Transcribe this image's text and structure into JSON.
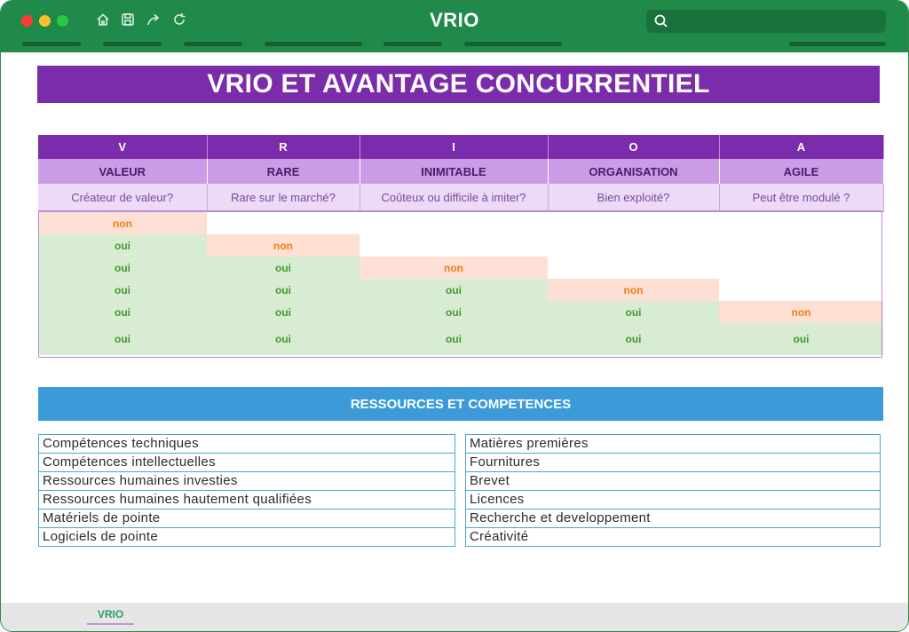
{
  "window": {
    "title": "VRIO",
    "controls": [
      "close",
      "minimize",
      "maximize"
    ],
    "toolbar_icons": [
      "home-icon",
      "save-icon",
      "share-icon",
      "refresh-icon"
    ],
    "search_icon": "search-icon",
    "colors": {
      "titlebar": "#1f8a49",
      "banner": "#7b2cab",
      "section": "#3d9ad9"
    }
  },
  "banner": {
    "title": "VRIO ET AVANTAGE CONCURRENTIEL"
  },
  "vrio": {
    "letters": [
      "V",
      "R",
      "I",
      "O",
      "A"
    ],
    "names": [
      "VALEUR",
      "RARE",
      "INIMITABLE",
      "ORGANISATION",
      "AGILE"
    ],
    "questions": [
      "Créateur de valeur?",
      "Rare sur le marché?",
      "Coûteux ou difficile à imiter?",
      "Bien exploité?",
      "Peut être modulé ?"
    ],
    "rows": [
      [
        "non",
        "",
        "",
        "",
        ""
      ],
      [
        "oui",
        "non",
        "",
        "",
        ""
      ],
      [
        "oui",
        "oui",
        "non",
        "",
        ""
      ],
      [
        "oui",
        "oui",
        "oui",
        "non",
        ""
      ],
      [
        "oui",
        "oui",
        "oui",
        "oui",
        "non"
      ],
      [
        "oui",
        "oui",
        "oui",
        "oui",
        "oui"
      ]
    ]
  },
  "resources": {
    "header": "RESSOURCES ET COMPETENCES",
    "left": [
      "Compétences techniques",
      "Compétences intellectuelles",
      "Ressources humaines investies",
      "Ressources humaines hautement qualifiées",
      "Matériels de pointe",
      "Logiciels de pointe"
    ],
    "right": [
      "Matières premières",
      "Fournitures",
      "Brevet",
      "Licences",
      "Recherche et developpement",
      "Créativité"
    ]
  },
  "footer": {
    "active_sheet": "VRIO"
  }
}
